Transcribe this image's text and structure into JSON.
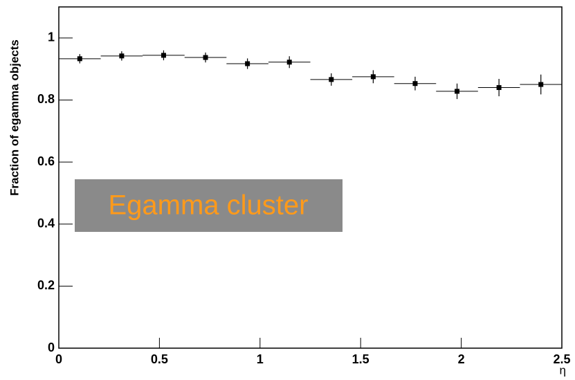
{
  "chart_data": {
    "type": "histogram",
    "x_label": "η",
    "y_label": "Fraction of egamma objects",
    "annotation": "Egamma cluster",
    "bins": [
      0,
      0.2083,
      0.4167,
      0.625,
      0.8333,
      1.0417,
      1.25,
      1.4583,
      1.6667,
      1.875,
      2.0833,
      2.2917,
      2.5
    ],
    "values": [
      0.933,
      0.942,
      0.944,
      0.937,
      0.917,
      0.922,
      0.866,
      0.875,
      0.853,
      0.828,
      0.84,
      0.85
    ],
    "errors": [
      0.015,
      0.015,
      0.016,
      0.016,
      0.017,
      0.019,
      0.02,
      0.021,
      0.022,
      0.025,
      0.028,
      0.032
    ],
    "color": "#000000",
    "xlim": [
      0,
      2.5
    ],
    "ylim": [
      0,
      1.1
    ],
    "xticks": [
      0,
      0.5,
      1,
      1.5,
      2,
      2.5
    ],
    "yticks": [
      0,
      0.2,
      0.4,
      0.6,
      0.8,
      1
    ]
  }
}
